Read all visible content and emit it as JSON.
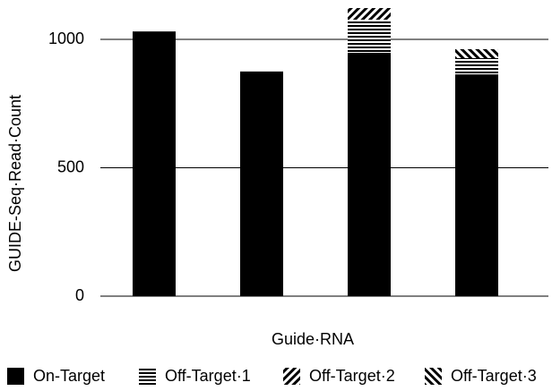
{
  "chart_data": {
    "type": "stacked_bar",
    "x_label": "Guide·RNA",
    "y_label": "GUIDE-Seq·Read·Count",
    "categories": [
      null,
      null,
      null,
      null
    ],
    "series": [
      {
        "name": "On-Target",
        "color": "#000000",
        "hatch": "solid",
        "values": [
          1031,
          875,
          948,
          864
        ]
      },
      {
        "name": "Off-Target·1",
        "color": "#000000",
        "hatch": "horizontal",
        "values": [
          0,
          0,
          129,
          63
        ]
      },
      {
        "name": "Off-Target·2",
        "color": "#000000",
        "hatch": "forward",
        "values": [
          0,
          0,
          45,
          0
        ]
      },
      {
        "name": "Off-Target·3",
        "color": "#000000",
        "hatch": "backward",
        "values": [
          0,
          0,
          0,
          35
        ]
      }
    ],
    "ylim": [
      0,
      1150
    ],
    "yticks": [
      0,
      500,
      1000
    ],
    "grid": true,
    "legend": "bottom"
  }
}
